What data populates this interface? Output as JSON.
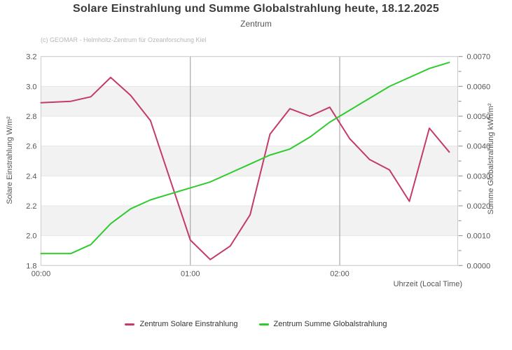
{
  "chart_data": {
    "type": "line",
    "title": "Solare Einstrahlung und Summe Globalstrahlung heute, 18.12.2025",
    "subtitle": "Zentrum",
    "credit": "(c) GEOMAR - Helmholtz-Zentrum für Ozeanforschung Kiel",
    "x_axis": {
      "label": "Uhrzeit (Local Time)",
      "unit": "minutes since 00:00",
      "min": 0,
      "max": 167.4,
      "ticks": [
        {
          "v": 0,
          "label": "00:00"
        },
        {
          "v": 60,
          "label": "01:00"
        },
        {
          "v": 120,
          "label": "02:00"
        }
      ],
      "gridlines": [
        60,
        120
      ]
    },
    "y_left": {
      "label": "Solare Einstrahlung W/m²",
      "min": 1.8,
      "max": 3.2,
      "ticks": [
        {
          "v": 1.8,
          "label": "1.8"
        },
        {
          "v": 2.0,
          "label": "2.0"
        },
        {
          "v": 2.2,
          "label": "2.2"
        },
        {
          "v": 2.4,
          "label": "2.4"
        },
        {
          "v": 2.6,
          "label": "2.6"
        },
        {
          "v": 2.8,
          "label": "2.8"
        },
        {
          "v": 3.0,
          "label": "3.0"
        },
        {
          "v": 3.2,
          "label": "3.2"
        }
      ],
      "bands": [
        [
          2.0,
          2.2
        ],
        [
          2.4,
          2.6
        ],
        [
          2.8,
          3.0
        ]
      ]
    },
    "y_right": {
      "label": "Summe Globalstrahlung kWh/m²",
      "min": 0.0,
      "max": 0.007,
      "ticks": [
        {
          "v": 0.0,
          "label": "0.0000"
        },
        {
          "v": 0.001,
          "label": "0.0010"
        },
        {
          "v": 0.002,
          "label": "0.0020"
        },
        {
          "v": 0.003,
          "label": "0.0030"
        },
        {
          "v": 0.004,
          "label": "0.0040"
        },
        {
          "v": 0.005,
          "label": "0.0050"
        },
        {
          "v": 0.006,
          "label": "0.0060"
        },
        {
          "v": 0.007,
          "label": "0.0070"
        }
      ],
      "minor_ticks": [
        0.0005,
        0.0015,
        0.0025,
        0.0035,
        0.0045,
        0.0055,
        0.0065
      ]
    },
    "series": [
      {
        "name": "Zentrum Solare Einstrahlung",
        "axis": "left",
        "color": "#c43a69",
        "points": [
          [
            0,
            2.89
          ],
          [
            12,
            2.9
          ],
          [
            20,
            2.93
          ],
          [
            28,
            3.06
          ],
          [
            36,
            2.94
          ],
          [
            44,
            2.77
          ],
          [
            52,
            2.37
          ],
          [
            60,
            1.97
          ],
          [
            68,
            1.84
          ],
          [
            76,
            1.93
          ],
          [
            84,
            2.14
          ],
          [
            92,
            2.68
          ],
          [
            100,
            2.85
          ],
          [
            108,
            2.8
          ],
          [
            116,
            2.86
          ],
          [
            124,
            2.65
          ],
          [
            132,
            2.51
          ],
          [
            140,
            2.44
          ],
          [
            148,
            2.23
          ],
          [
            156,
            2.72
          ],
          [
            164,
            2.56
          ]
        ]
      },
      {
        "name": "Zentrum Summe Globalstrahlung",
        "axis": "right",
        "color": "#2ecb2e",
        "points": [
          [
            0,
            0.0004
          ],
          [
            12,
            0.0004
          ],
          [
            20,
            0.0007
          ],
          [
            28,
            0.0014
          ],
          [
            36,
            0.0019
          ],
          [
            44,
            0.0022
          ],
          [
            52,
            0.0024
          ],
          [
            60,
            0.0026
          ],
          [
            68,
            0.0028
          ],
          [
            76,
            0.0031
          ],
          [
            84,
            0.0034
          ],
          [
            92,
            0.0037
          ],
          [
            100,
            0.0039
          ],
          [
            108,
            0.0043
          ],
          [
            116,
            0.0048
          ],
          [
            124,
            0.0052
          ],
          [
            132,
            0.0056
          ],
          [
            140,
            0.006
          ],
          [
            148,
            0.0063
          ],
          [
            156,
            0.0066
          ],
          [
            164,
            0.0068
          ]
        ]
      }
    ],
    "legend_position": "bottom",
    "colors": {
      "band": "#f2f2f2",
      "plot_border": "#cccccc",
      "h_grid": "#e6e6e6",
      "v_grid": "#999999",
      "tick": "#888888"
    }
  }
}
